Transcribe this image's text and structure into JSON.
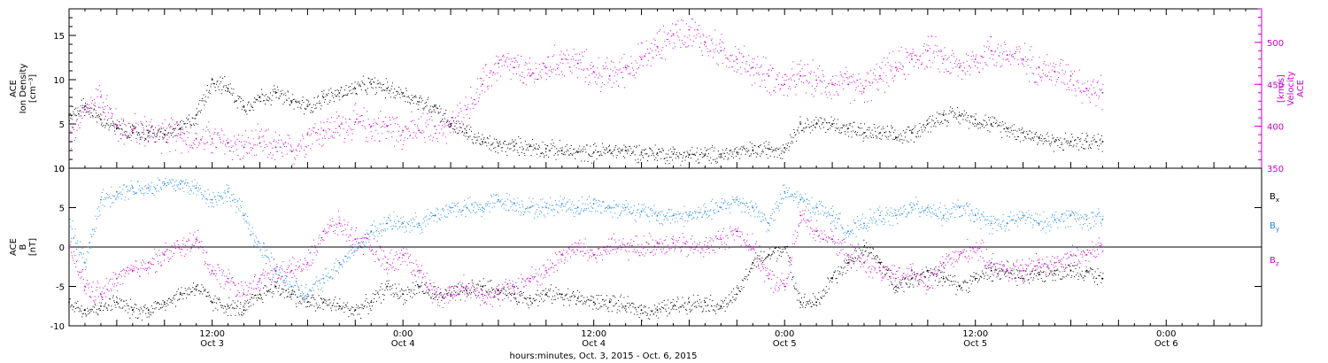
{
  "colors": {
    "density": "#000000",
    "velocity": "#cc00cc",
    "bx": "#000000",
    "by": "#1e88e5",
    "bz": "#cc00cc"
  },
  "chart_data": [
    {
      "type": "scatter",
      "panel": "plasma",
      "ylabel_left": [
        "ACE",
        "Ion Density",
        "[cm⁻³]"
      ],
      "ylabel_right": [
        "ACE",
        "Velocity",
        "[km/s]"
      ],
      "ylim_left": [
        0,
        18
      ],
      "yticks_left": [
        0,
        5,
        10,
        15
      ],
      "ylim_right": [
        350,
        540
      ],
      "yticks_right": [
        350,
        400,
        450,
        500
      ],
      "xlim_hours": [
        0,
        75
      ],
      "series": [
        {
          "axis": "left",
          "x": [
            0,
            1,
            2,
            3,
            4,
            5,
            6,
            7,
            8,
            9,
            10,
            11,
            12,
            13,
            14,
            15,
            16,
            17,
            18,
            19,
            20,
            21,
            22,
            23,
            24,
            25,
            26,
            27,
            28,
            29,
            30,
            31,
            32,
            33,
            34,
            35,
            36,
            37,
            38,
            39,
            40,
            41,
            42,
            43,
            44,
            45,
            46,
            47,
            48,
            49,
            50,
            51,
            52,
            53,
            54,
            55,
            56,
            57,
            58,
            59,
            60,
            61,
            62,
            63,
            64,
            65
          ],
          "y": [
            6,
            7,
            5.5,
            4.5,
            4,
            4,
            3.8,
            4.5,
            6,
            10,
            9,
            7,
            8,
            8.5,
            7.5,
            7,
            8,
            8.5,
            9,
            9.5,
            9,
            8.5,
            7.5,
            7,
            5,
            4,
            3,
            2.5,
            2.5,
            2.5,
            2.2,
            2,
            1.8,
            1.8,
            2,
            2,
            1.8,
            1.7,
            1.6,
            1.5,
            1.5,
            1.6,
            1.8,
            2,
            2.2,
            2.3,
            5,
            5,
            5,
            4.5,
            4,
            4,
            3.5,
            4,
            5,
            6,
            6,
            5.5,
            5,
            4.5,
            4,
            3.5,
            3,
            3,
            3,
            3
          ]
        },
        {
          "axis": "right",
          "x": [
            0,
            1,
            2,
            3,
            4,
            5,
            6,
            7,
            8,
            9,
            10,
            11,
            12,
            13,
            14,
            15,
            16,
            17,
            18,
            19,
            20,
            21,
            22,
            23,
            24,
            25,
            26,
            27,
            28,
            29,
            30,
            31,
            32,
            33,
            34,
            35,
            36,
            37,
            38,
            39,
            40,
            41,
            42,
            43,
            44,
            45,
            46,
            47,
            48,
            49,
            50,
            51,
            52,
            53,
            54,
            55,
            56,
            57,
            58,
            59,
            60,
            61,
            62,
            63,
            64,
            65
          ],
          "y": [
            385,
            420,
            435,
            400,
            395,
            395,
            390,
            390,
            385,
            385,
            380,
            375,
            380,
            375,
            370,
            390,
            395,
            400,
            405,
            400,
            400,
            395,
            395,
            400,
            400,
            420,
            450,
            475,
            470,
            460,
            470,
            480,
            475,
            465,
            460,
            470,
            480,
            495,
            510,
            515,
            500,
            490,
            480,
            470,
            460,
            450,
            460,
            455,
            450,
            450,
            445,
            460,
            470,
            480,
            490,
            480,
            470,
            480,
            490,
            485,
            480,
            470,
            465,
            460,
            445,
            440
          ]
        }
      ]
    },
    {
      "type": "scatter",
      "panel": "magnetic-field",
      "ylabel_left": [
        "ACE",
        "B",
        "[nT]"
      ],
      "ylim": [
        -10,
        10
      ],
      "yticks": [
        -10,
        -5,
        0,
        5,
        10
      ],
      "xlim_hours": [
        0,
        75
      ],
      "xtick_labels": [
        {
          "hour": 9,
          "time": "12:00",
          "date": "Oct 3"
        },
        {
          "hour": 21,
          "time": "0:00",
          "date": "Oct 4"
        },
        {
          "hour": 33,
          "time": "12:00",
          "date": "Oct 4"
        },
        {
          "hour": 45,
          "time": "0:00",
          "date": "Oct 5"
        },
        {
          "hour": 57,
          "time": "12:00",
          "date": "Oct 5"
        },
        {
          "hour": 69,
          "time": "0:00",
          "date": "Oct 6"
        }
      ],
      "xlabel": "hours:minutes, Oct.  3, 2015 - Oct.  6, 2015",
      "legend_placement": "right",
      "series": [
        {
          "name": "Bx",
          "x": [
            0,
            1,
            2,
            3,
            4,
            5,
            6,
            7,
            8,
            9,
            10,
            11,
            12,
            13,
            14,
            15,
            16,
            17,
            18,
            19,
            20,
            21,
            22,
            23,
            24,
            25,
            26,
            27,
            28,
            29,
            30,
            31,
            32,
            33,
            34,
            35,
            36,
            37,
            38,
            39,
            40,
            41,
            42,
            43,
            44,
            45,
            46,
            47,
            48,
            49,
            50,
            51,
            52,
            53,
            54,
            55,
            56,
            57,
            58,
            59,
            60,
            61,
            62,
            63,
            64,
            65
          ],
          "y": [
            -7,
            -8,
            -7.5,
            -7,
            -8,
            -8,
            -7,
            -6,
            -5,
            -7,
            -7.5,
            -8,
            -6,
            -5,
            -6,
            -7,
            -7,
            -7.5,
            -8,
            -7,
            -5,
            -6,
            -5,
            -6,
            -6,
            -5.5,
            -5,
            -5.5,
            -6,
            -6.5,
            -6,
            -6,
            -6.5,
            -7,
            -7,
            -7.5,
            -8,
            -8,
            -7.5,
            -7,
            -7,
            -7.5,
            -6,
            -2,
            -1,
            0,
            -7,
            -7,
            -4,
            -2,
            0,
            -2,
            -5,
            -4,
            -3,
            -4,
            -5,
            -4,
            -3,
            -3,
            -4,
            -3.5,
            -3,
            -3,
            -3,
            -4
          ]
        },
        {
          "name": "By",
          "x": [
            0,
            1,
            2,
            3,
            4,
            5,
            6,
            7,
            8,
            9,
            10,
            11,
            12,
            13,
            14,
            15,
            16,
            17,
            18,
            19,
            20,
            21,
            22,
            23,
            24,
            25,
            26,
            27,
            28,
            29,
            30,
            31,
            32,
            33,
            34,
            35,
            36,
            37,
            38,
            39,
            40,
            41,
            42,
            43,
            44,
            45,
            46,
            47,
            48,
            49,
            50,
            51,
            52,
            53,
            54,
            55,
            56,
            57,
            58,
            59,
            60,
            61,
            62,
            63,
            64,
            65
          ],
          "y": [
            3,
            -2,
            6,
            7,
            7.5,
            7.5,
            8,
            8,
            7.5,
            6,
            7,
            4,
            0,
            -3,
            -5,
            -6,
            -4,
            -2,
            0,
            2,
            3,
            3,
            3,
            4,
            5,
            5,
            5,
            6,
            5.5,
            5,
            5,
            5.5,
            5,
            5.5,
            5,
            5,
            4.5,
            4,
            4,
            4,
            4.5,
            5,
            6,
            5,
            3,
            7,
            6,
            5,
            4,
            2,
            3,
            4,
            4,
            5,
            5,
            4,
            5,
            4,
            3,
            3,
            4,
            3,
            3.5,
            4,
            3.5,
            3.5
          ]
        },
        {
          "name": "Bz",
          "x": [
            0,
            1,
            2,
            3,
            4,
            5,
            6,
            7,
            8,
            9,
            10,
            11,
            12,
            13,
            14,
            15,
            16,
            17,
            18,
            19,
            20,
            21,
            22,
            23,
            24,
            25,
            26,
            27,
            28,
            29,
            30,
            31,
            32,
            33,
            34,
            35,
            36,
            37,
            38,
            39,
            40,
            41,
            42,
            43,
            44,
            45,
            46,
            47,
            48,
            49,
            50,
            51,
            52,
            53,
            54,
            55,
            56,
            57,
            58,
            59,
            60,
            61,
            62,
            63,
            64,
            65
          ],
          "y": [
            0,
            -5,
            -6,
            -4,
            -3,
            -2,
            -1,
            0,
            1,
            -3,
            -4,
            -6,
            -4,
            -3,
            -3,
            -2,
            2,
            3,
            1,
            0,
            -2,
            -1,
            -3,
            -6,
            -6,
            -5,
            -6,
            -6,
            -5,
            -4,
            -3,
            -1,
            0,
            -1,
            0,
            0,
            0,
            0.5,
            0.5,
            0,
            0,
            1,
            2,
            0,
            -4,
            -5,
            4,
            2,
            1,
            -1,
            -2,
            -3,
            -4,
            -3,
            -5,
            -2,
            -1,
            0,
            -2,
            -3,
            -3,
            -2,
            -2,
            -1,
            -1,
            0
          ]
        }
      ]
    }
  ]
}
